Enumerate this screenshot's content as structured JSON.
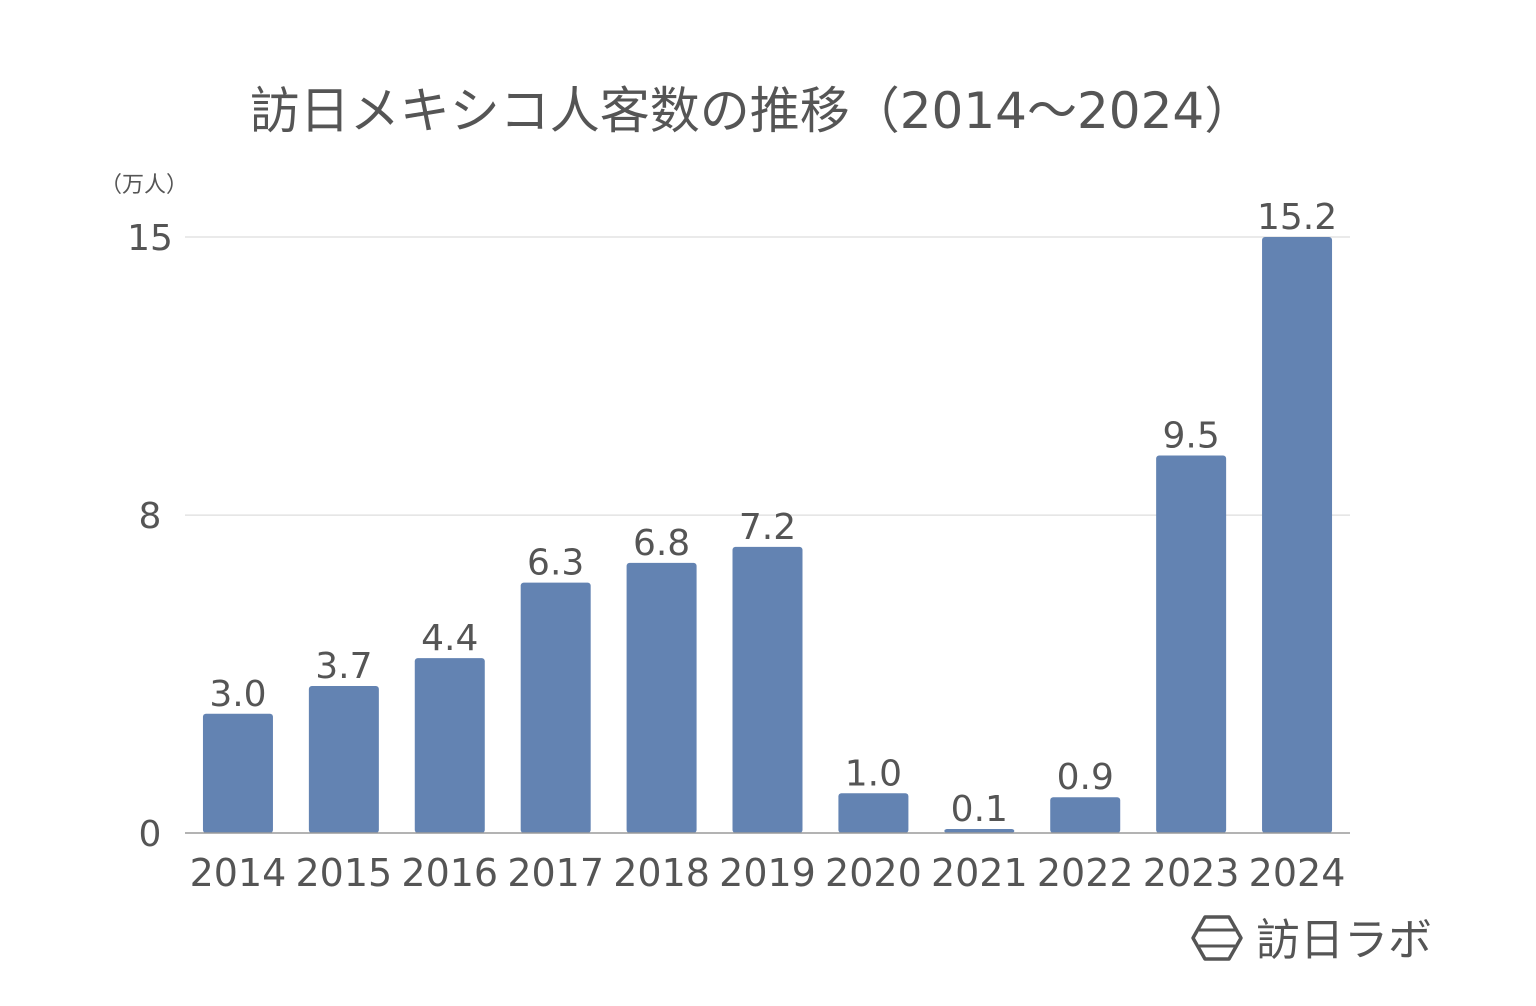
{
  "chart_data": {
    "type": "bar",
    "title": "訪日メキシコ人客数の推移（2014～2024）",
    "ylabel": "（万人）",
    "xlabel": "",
    "categories": [
      "2014",
      "2015",
      "2016",
      "2017",
      "2018",
      "2019",
      "2020",
      "2021",
      "2022",
      "2023",
      "2024"
    ],
    "values": [
      3.0,
      3.7,
      4.4,
      6.3,
      6.8,
      7.2,
      1.0,
      0.1,
      0.9,
      9.5,
      15.2
    ],
    "data_labels": [
      "3.0",
      "3.7",
      "4.4",
      "6.3",
      "6.8",
      "7.2",
      "1.0",
      "0.1",
      "0.9",
      "9.5",
      "15.2"
    ],
    "yticks": [
      0,
      8,
      15
    ],
    "ylim": [
      0,
      15
    ],
    "grid": true,
    "legend": "none",
    "colors": {
      "bar": "#6383b2",
      "grid": "#e3e3e3",
      "axis": "#9a9a9a",
      "text": "#555555"
    }
  },
  "brand": {
    "name": "訪日ラボ",
    "icon": "hexagon-logo-icon"
  }
}
